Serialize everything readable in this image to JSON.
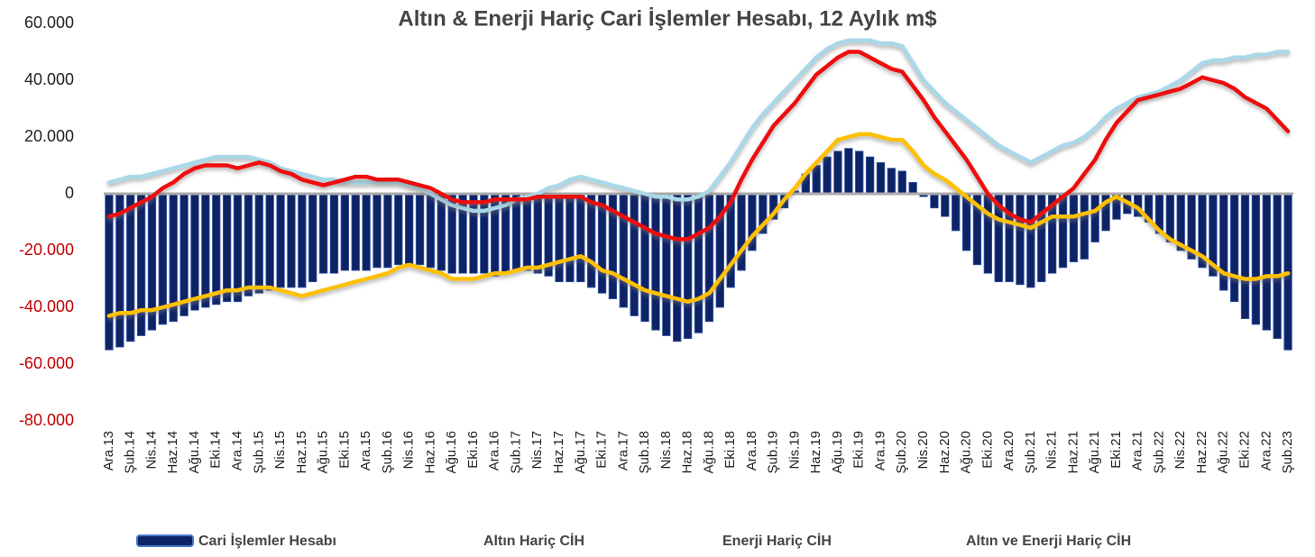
{
  "chart_data": {
    "type": "combo",
    "title": "Altın & Enerji Hariç Cari İşlemler Hesabı, 12 Aylık m$",
    "categories": [
      "Ara.13",
      null,
      "Şub.14",
      null,
      "Nis.14",
      null,
      "Haz.14",
      null,
      "Ağu.14",
      null,
      "Eki.14",
      null,
      "Ara.14",
      null,
      "Şub.15",
      null,
      "Nis.15",
      null,
      "Haz.15",
      null,
      "Ağu.15",
      null,
      "Eki.15",
      null,
      "Ara.15",
      null,
      "Şub.16",
      null,
      "Nis.16",
      null,
      "Haz.16",
      null,
      "Ağu.16",
      null,
      "Eki.16",
      null,
      "Ara.16",
      null,
      "Şub.17",
      null,
      "Nis.17",
      null,
      "Haz.17",
      null,
      "Ağu.17",
      null,
      "Eki.17",
      null,
      "Ara.17",
      null,
      "Şub.18",
      null,
      "Nis.18",
      null,
      "Haz.18",
      null,
      "Ağu.18",
      null,
      "Eki.18",
      null,
      "Ara.18",
      null,
      "Şub.19",
      null,
      "Nis.19",
      null,
      "Haz.19",
      null,
      "Ağu.19",
      null,
      "Eki.19",
      null,
      "Ara.19",
      null,
      "Şub.20",
      null,
      "Nis.20",
      null,
      "Haz.20",
      null,
      "Ağu.20",
      null,
      "Eki.20",
      null,
      "Ara.20",
      null,
      "Şub.21",
      null,
      "Nis.21",
      null,
      "Haz.21",
      null,
      "Ağu.21",
      null,
      "Eki.21",
      null,
      "Ara.21",
      null,
      "Şub.22",
      null,
      "Nis.22",
      null,
      "Haz.22",
      null,
      "Ağu.22",
      null,
      "Eki.22",
      null,
      "Ara.22",
      null,
      "Şub.23"
    ],
    "series": [
      {
        "name": "Cari İşlemler Hesabı",
        "kind": "bar",
        "color": "#0d2366",
        "values": [
          -55000,
          -54000,
          -52000,
          -50000,
          -48000,
          -46000,
          -45000,
          -43000,
          -41000,
          -40000,
          -39000,
          -38000,
          -38000,
          -36000,
          -35000,
          -34000,
          -33000,
          -33000,
          -33000,
          -31000,
          -28000,
          -28000,
          -27000,
          -27000,
          -27000,
          -26000,
          -26000,
          -25000,
          -25000,
          -25000,
          -26000,
          -27000,
          -28000,
          -28000,
          -28000,
          -28000,
          -29000,
          -28000,
          -27000,
          -27000,
          -28000,
          -29000,
          -31000,
          -31000,
          -31000,
          -33000,
          -35000,
          -37000,
          -40000,
          -43000,
          -45000,
          -48000,
          -50000,
          -52000,
          -51000,
          -49000,
          -45000,
          -40000,
          -33000,
          -27000,
          -20000,
          -14000,
          -9000,
          -5000,
          1000,
          7000,
          10000,
          13000,
          15000,
          16000,
          15000,
          13000,
          11000,
          9000,
          8000,
          4000,
          -1000,
          -5000,
          -8000,
          -13000,
          -20000,
          -25000,
          -28000,
          -31000,
          -31000,
          -32000,
          -33000,
          -31000,
          -28000,
          -26000,
          -24000,
          -23000,
          -17000,
          -13000,
          -9000,
          -7000,
          -8000,
          -10000,
          -14000,
          -17000,
          -20000,
          -23000,
          -26000,
          -29000,
          -34000,
          -38000,
          -44000,
          -46000,
          -48000,
          -51000,
          -55000
        ]
      },
      {
        "name": "Altın Hariç CİH",
        "kind": "line",
        "color": "#ffc000",
        "values": [
          -43000,
          -42000,
          -42000,
          -41000,
          -41000,
          -40000,
          -39000,
          -38000,
          -37000,
          -36000,
          -35000,
          -34000,
          -34000,
          -33000,
          -33000,
          -33000,
          -34000,
          -35000,
          -36000,
          -35000,
          -34000,
          -33000,
          -32000,
          -31000,
          -30000,
          -29000,
          -28000,
          -26000,
          -25000,
          -26000,
          -27000,
          -28000,
          -30000,
          -30000,
          -30000,
          -29000,
          -28000,
          -28000,
          -27000,
          -26000,
          -26000,
          -25000,
          -24000,
          -23000,
          -22000,
          -24000,
          -27000,
          -28000,
          -30000,
          -32000,
          -34000,
          -35000,
          -36000,
          -37000,
          -38000,
          -37000,
          -35000,
          -30000,
          -25000,
          -20000,
          -15000,
          -11000,
          -7000,
          -2000,
          2000,
          7000,
          11000,
          15000,
          19000,
          20000,
          21000,
          21000,
          20000,
          19000,
          19000,
          15000,
          10000,
          7000,
          5000,
          2000,
          -1000,
          -4000,
          -7000,
          -9000,
          -10000,
          -11000,
          -12000,
          -10000,
          -8000,
          -8000,
          -8000,
          -7000,
          -6000,
          -3000,
          -1000,
          -3000,
          -5000,
          -9000,
          -13000,
          -16000,
          -18000,
          -20000,
          -22000,
          -25000,
          -28000,
          -29000,
          -30000,
          -30000,
          -29000,
          -29000,
          -28000
        ]
      },
      {
        "name": "Enerji Hariç CİH",
        "kind": "line",
        "color": "#ee1111",
        "values": [
          -8000,
          -7000,
          -5000,
          -3000,
          -1000,
          2000,
          4000,
          7000,
          9000,
          10000,
          10000,
          10000,
          9000,
          10000,
          11000,
          10000,
          8000,
          7000,
          5000,
          4000,
          3000,
          4000,
          5000,
          6000,
          6000,
          5000,
          5000,
          5000,
          4000,
          3000,
          2000,
          0,
          -2000,
          -3000,
          -3000,
          -3000,
          -2000,
          -2000,
          -2000,
          -2000,
          -1000,
          -1000,
          -1000,
          -1000,
          -1000,
          -3000,
          -4000,
          -6000,
          -8000,
          -10000,
          -12000,
          -14000,
          -15000,
          -16000,
          -16000,
          -14000,
          -12000,
          -8000,
          -3000,
          5000,
          12000,
          18000,
          24000,
          28000,
          32000,
          37000,
          42000,
          45000,
          48000,
          50000,
          50000,
          48000,
          46000,
          44000,
          43000,
          38000,
          33000,
          27000,
          22000,
          17000,
          12000,
          6000,
          0,
          -4000,
          -7000,
          -9000,
          -10000,
          -7000,
          -4000,
          -1000,
          2000,
          7000,
          12000,
          19000,
          25000,
          29000,
          33000,
          34000,
          35000,
          36000,
          37000,
          39000,
          41000,
          40000,
          39000,
          37000,
          34000,
          32000,
          30000,
          26000,
          22000
        ]
      },
      {
        "name": "Altın ve Enerji Hariç CİH",
        "kind": "line",
        "color": "#a9d8e8",
        "values": [
          4000,
          5000,
          6000,
          6000,
          7000,
          8000,
          9000,
          10000,
          11000,
          12000,
          13000,
          13000,
          13000,
          13000,
          12000,
          11000,
          9000,
          8000,
          7000,
          6000,
          5000,
          5000,
          4000,
          4000,
          4000,
          4000,
          4000,
          4000,
          3000,
          2000,
          0,
          -2000,
          -4000,
          -5000,
          -6000,
          -6000,
          -5000,
          -4000,
          -2000,
          -1000,
          0,
          2000,
          3000,
          5000,
          6000,
          5000,
          4000,
          3000,
          2000,
          1000,
          0,
          -1000,
          -1000,
          -2000,
          -2000,
          -1000,
          1000,
          6000,
          11000,
          17000,
          23000,
          28000,
          32000,
          36000,
          40000,
          44000,
          48000,
          51000,
          53000,
          54000,
          54000,
          54000,
          53000,
          53000,
          52000,
          46000,
          40000,
          36000,
          32000,
          29000,
          26000,
          23000,
          20000,
          17000,
          15000,
          13000,
          11000,
          13000,
          15000,
          17000,
          18000,
          20000,
          23000,
          27000,
          30000,
          32000,
          34000,
          35000,
          36000,
          38000,
          40000,
          43000,
          46000,
          47000,
          47000,
          48000,
          48000,
          49000,
          49000,
          50000,
          50000
        ]
      }
    ],
    "ylim": [
      -80000,
      60000
    ],
    "yticks": [
      {
        "value": -80000,
        "label": "-80.000"
      },
      {
        "value": -60000,
        "label": "-60.000"
      },
      {
        "value": -40000,
        "label": "-40.000"
      },
      {
        "value": -20000,
        "label": "-20.000"
      },
      0,
      {
        "value": 20000,
        "label": "20.000"
      },
      {
        "value": 40000,
        "label": "40.000"
      },
      {
        "value": 60000,
        "label": "60.000"
      }
    ],
    "grid": false,
    "legend": "bottom"
  }
}
